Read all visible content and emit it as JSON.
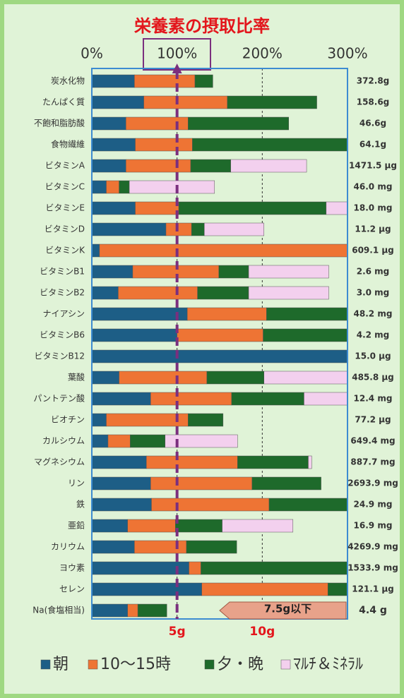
{
  "chart_data": {
    "type": "stacked-barh",
    "title": "栄養素の摂取比率",
    "categories": [
      "炭水化物",
      "たんぱく質",
      "不飽和脂肪酸",
      "食物繊維",
      "ビタミンA",
      "ビタミンC",
      "ビタミンE",
      "ビタミンD",
      "ビタミンK",
      "ビタミンB1",
      "ビタミンB2",
      "ナイアシン",
      "ビタミンB6",
      "ビタミンB12",
      "葉酸",
      "パントテン酸",
      "ビオチン",
      "カルシウム",
      "マグネシウム",
      "リン",
      "鉄",
      "亜鉛",
      "カリウム",
      "ヨウ素",
      "セレン"
    ],
    "amount_labels": [
      "372.8g",
      "158.6g",
      "46.6g",
      "64.1g",
      "1471.5 μg",
      "46.0 mg",
      "18.0 mg",
      "11.2 μg",
      "609.1 μg",
      "2.6 mg",
      "3.0 mg",
      "48.2 mg",
      "4.2 mg",
      "15.0 μg",
      "485.8 μg",
      "12.4 mg",
      "77.2 μg",
      "649.4 mg",
      "887.7 mg",
      "2693.9 mg",
      "24.9 mg",
      "16.9 mg",
      "4269.9 mg",
      "1533.9 mg",
      "121.1 μg"
    ],
    "series": [
      {
        "name": "朝",
        "color": "#1d5e86",
        "values": [
          50,
          61,
          40,
          51,
          40,
          17,
          51,
          87,
          9,
          48,
          31,
          112,
          100,
          320,
          32,
          69,
          17,
          19,
          64,
          69,
          70,
          42,
          50,
          114,
          129
        ]
      },
      {
        "name": "10～15時",
        "color": "#ee7434",
        "values": [
          71,
          98,
          73,
          67,
          76,
          15,
          51,
          30,
          300,
          101,
          93,
          93,
          101,
          null,
          103,
          95,
          96,
          26,
          107,
          119,
          138,
          56,
          61,
          14,
          148
        ]
      },
      {
        "name": "夕・晩",
        "color": "#1e6a2b",
        "values": [
          21,
          105,
          118,
          185,
          47,
          12,
          173,
          15,
          null,
          35,
          60,
          110,
          110,
          null,
          67,
          85,
          41,
          41,
          83,
          81,
          105,
          55,
          59,
          200,
          30
        ]
      },
      {
        "name": "ﾏﾙﾁ＆ﾐﾈﾗﾙ",
        "color": "#f3d0ee",
        "values": [
          null,
          null,
          null,
          null,
          89,
          100,
          30,
          70,
          null,
          94,
          94,
          null,
          null,
          null,
          105,
          55,
          null,
          85,
          4,
          null,
          null,
          83,
          null,
          null,
          null
        ]
      }
    ],
    "xlim": [
      0,
      300
    ],
    "xticks": [
      {
        "value": 0,
        "label": "0%"
      },
      {
        "value": 100,
        "label": "100%"
      },
      {
        "value": 200,
        "label": "200%"
      },
      {
        "value": 300,
        "label": "300%"
      }
    ],
    "reference_line": 100,
    "sodium": {
      "category": "Na(食塩相当)",
      "values": [
        2.1,
        0.6,
        1.7
      ],
      "amount_label": "4.4 g",
      "xlim": [
        0,
        15
      ],
      "xticks": [
        {
          "value": 5,
          "label": "5g"
        },
        {
          "value": 10,
          "label": "10g"
        }
      ],
      "limit": {
        "value": 7.5,
        "label": "7.5g以下"
      }
    }
  }
}
